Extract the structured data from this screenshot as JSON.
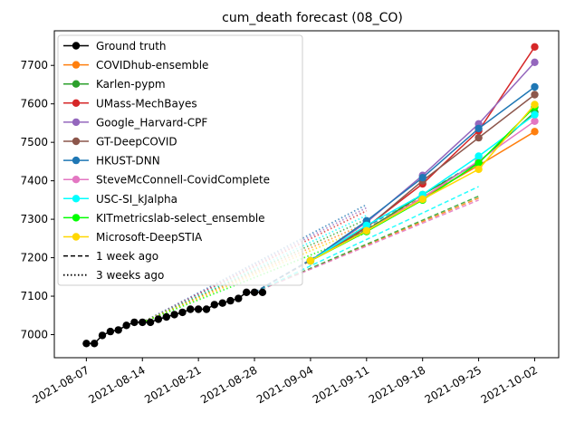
{
  "chart_data": {
    "type": "line",
    "title": "cum_death forecast (08_CO)",
    "xlabel": "",
    "ylabel": "",
    "x_ticks": [
      "2021-08-07",
      "2021-08-14",
      "2021-08-21",
      "2021-08-28",
      "2021-09-04",
      "2021-09-11",
      "2021-09-18",
      "2021-09-25",
      "2021-10-02"
    ],
    "y_ticks": [
      "7000",
      "7100",
      "7200",
      "7300",
      "7400",
      "7500",
      "7600",
      "7700"
    ],
    "xlim": [
      "2021-08-03",
      "2021-10-05"
    ],
    "ylim": [
      6940,
      7790
    ],
    "grid": false,
    "legend_position": "top-left",
    "ground_truth": {
      "name": "Ground truth",
      "color": "#000000",
      "points": [
        [
          "2021-08-07",
          6977
        ],
        [
          "2021-08-08",
          6977
        ],
        [
          "2021-08-09",
          6998
        ],
        [
          "2021-08-10",
          7008
        ],
        [
          "2021-08-11",
          7012
        ],
        [
          "2021-08-12",
          7024
        ],
        [
          "2021-08-13",
          7032
        ],
        [
          "2021-08-14",
          7032
        ],
        [
          "2021-08-15",
          7032
        ],
        [
          "2021-08-16",
          7040
        ],
        [
          "2021-08-17",
          7046
        ],
        [
          "2021-08-18",
          7052
        ],
        [
          "2021-08-19",
          7058
        ],
        [
          "2021-08-20",
          7066
        ],
        [
          "2021-08-21",
          7066
        ],
        [
          "2021-08-22",
          7066
        ],
        [
          "2021-08-23",
          7078
        ],
        [
          "2021-08-24",
          7082
        ],
        [
          "2021-08-25",
          7088
        ],
        [
          "2021-08-26",
          7094
        ],
        [
          "2021-08-27",
          7110
        ],
        [
          "2021-08-28",
          7110
        ],
        [
          "2021-08-29",
          7110
        ]
      ]
    },
    "series": [
      {
        "name": "COVIDhub-ensemble",
        "color": "#ff7f0e",
        "points": [
          [
            "2021-09-04",
            7192
          ],
          [
            "2021-09-11",
            7272
          ],
          [
            "2021-09-18",
            7356
          ],
          [
            "2021-09-25",
            7440
          ],
          [
            "2021-10-02",
            7528
          ]
        ]
      },
      {
        "name": "Karlen-pypm",
        "color": "#2ca02c",
        "points": [
          [
            "2021-09-04",
            7192
          ],
          [
            "2021-09-11",
            7272
          ],
          [
            "2021-09-18",
            7364
          ],
          [
            "2021-09-25",
            7448
          ],
          [
            "2021-10-02",
            7578
          ]
        ]
      },
      {
        "name": "UMass-MechBayes",
        "color": "#d62728",
        "points": [
          [
            "2021-09-04",
            7192
          ],
          [
            "2021-09-11",
            7280
          ],
          [
            "2021-09-18",
            7392
          ],
          [
            "2021-09-25",
            7530
          ],
          [
            "2021-10-02",
            7748
          ]
        ]
      },
      {
        "name": "Google_Harvard-CPF",
        "color": "#9467bd",
        "points": [
          [
            "2021-09-04",
            7192
          ],
          [
            "2021-09-11",
            7292
          ],
          [
            "2021-09-18",
            7414
          ],
          [
            "2021-09-25",
            7548
          ],
          [
            "2021-10-02",
            7708
          ]
        ]
      },
      {
        "name": "GT-DeepCOVID",
        "color": "#8c564b",
        "points": [
          [
            "2021-09-04",
            7192
          ],
          [
            "2021-09-11",
            7278
          ],
          [
            "2021-09-18",
            7400
          ],
          [
            "2021-09-25",
            7512
          ],
          [
            "2021-10-02",
            7624
          ]
        ]
      },
      {
        "name": "HKUST-DNN",
        "color": "#1f77b4",
        "points": [
          [
            "2021-09-04",
            7192
          ],
          [
            "2021-09-11",
            7296
          ],
          [
            "2021-09-18",
            7408
          ],
          [
            "2021-09-25",
            7536
          ],
          [
            "2021-10-02",
            7644
          ]
        ]
      },
      {
        "name": "SteveMcConnell-CovidComplete",
        "color": "#e377c2",
        "points": [
          [
            "2021-09-04",
            7192
          ],
          [
            "2021-09-11",
            7270
          ],
          [
            "2021-09-18",
            7356
          ],
          [
            "2021-09-25",
            7452
          ],
          [
            "2021-10-02",
            7555
          ]
        ]
      },
      {
        "name": "USC-SI_kJalpha",
        "color": "#00ffff",
        "points": [
          [
            "2021-09-04",
            7192
          ],
          [
            "2021-09-11",
            7284
          ],
          [
            "2021-09-18",
            7364
          ],
          [
            "2021-09-25",
            7464
          ],
          [
            "2021-10-02",
            7572
          ]
        ]
      },
      {
        "name": "KITmetricslab-select_ensemble",
        "color": "#00ff00",
        "points": [
          [
            "2021-09-04",
            7192
          ],
          [
            "2021-09-11",
            7268
          ],
          [
            "2021-09-18",
            7350
          ],
          [
            "2021-09-25",
            7446
          ],
          [
            "2021-10-02",
            7592
          ]
        ]
      },
      {
        "name": "Microsoft-DeepSTIA",
        "color": "#ffd700",
        "points": [
          [
            "2021-09-04",
            7192
          ],
          [
            "2021-09-11",
            7270
          ],
          [
            "2021-09-18",
            7352
          ],
          [
            "2021-09-25",
            7430
          ],
          [
            "2021-10-02",
            7598
          ]
        ]
      }
    ],
    "one_week_ago": [
      {
        "color": "#ff7f0e",
        "points": [
          [
            "2021-08-28",
            7110
          ],
          [
            "2021-09-25",
            7355
          ]
        ]
      },
      {
        "color": "#2ca02c",
        "points": [
          [
            "2021-08-28",
            7110
          ],
          [
            "2021-09-25",
            7360
          ]
        ]
      },
      {
        "color": "#e377c2",
        "points": [
          [
            "2021-08-28",
            7110
          ],
          [
            "2021-09-25",
            7350
          ]
        ]
      },
      {
        "color": "#00ffff",
        "points": [
          [
            "2021-08-28",
            7110
          ],
          [
            "2021-09-25",
            7385
          ]
        ]
      },
      {
        "color": "#8c564b",
        "points": [
          [
            "2021-08-28",
            7110
          ],
          [
            "2021-09-25",
            7440
          ]
        ]
      },
      {
        "color": "#1f77b4",
        "points": [
          [
            "2021-08-28",
            7110
          ],
          [
            "2021-09-25",
            7450
          ]
        ]
      }
    ],
    "three_weeks_ago": [
      {
        "color": "#1f77b4",
        "points": [
          [
            "2021-08-14",
            7032
          ],
          [
            "2021-09-11",
            7338
          ]
        ]
      },
      {
        "color": "#9467bd",
        "points": [
          [
            "2021-08-14",
            7032
          ],
          [
            "2021-09-11",
            7330
          ]
        ]
      },
      {
        "color": "#d62728",
        "points": [
          [
            "2021-08-14",
            7032
          ],
          [
            "2021-09-11",
            7322
          ]
        ]
      },
      {
        "color": "#00ffff",
        "points": [
          [
            "2021-08-14",
            7032
          ],
          [
            "2021-09-11",
            7310
          ]
        ]
      },
      {
        "color": "#2ca02c",
        "points": [
          [
            "2021-08-14",
            7032
          ],
          [
            "2021-09-11",
            7300
          ]
        ]
      },
      {
        "color": "#ff7f0e",
        "points": [
          [
            "2021-08-14",
            7032
          ],
          [
            "2021-09-11",
            7290
          ]
        ]
      },
      {
        "color": "#ffd700",
        "points": [
          [
            "2021-08-14",
            7032
          ],
          [
            "2021-09-11",
            7280
          ]
        ]
      },
      {
        "color": "#00ff00",
        "points": [
          [
            "2021-08-14",
            7032
          ],
          [
            "2021-09-11",
            7265
          ]
        ]
      }
    ],
    "legend": [
      {
        "label": "Ground truth",
        "color": "#000000",
        "style": "marker"
      },
      {
        "label": "COVIDhub-ensemble",
        "color": "#ff7f0e",
        "style": "marker"
      },
      {
        "label": "Karlen-pypm",
        "color": "#2ca02c",
        "style": "marker"
      },
      {
        "label": "UMass-MechBayes",
        "color": "#d62728",
        "style": "marker"
      },
      {
        "label": "Google_Harvard-CPF",
        "color": "#9467bd",
        "style": "marker"
      },
      {
        "label": "GT-DeepCOVID",
        "color": "#8c564b",
        "style": "marker"
      },
      {
        "label": "HKUST-DNN",
        "color": "#1f77b4",
        "style": "marker"
      },
      {
        "label": "SteveMcConnell-CovidComplete",
        "color": "#e377c2",
        "style": "marker"
      },
      {
        "label": "USC-SI_kJalpha",
        "color": "#00ffff",
        "style": "marker"
      },
      {
        "label": "KITmetricslab-select_ensemble",
        "color": "#00ff00",
        "style": "marker"
      },
      {
        "label": "Microsoft-DeepSTIA",
        "color": "#ffd700",
        "style": "marker"
      },
      {
        "label": "1 week ago",
        "color": "#000000",
        "style": "dashed"
      },
      {
        "label": "3 weeks ago",
        "color": "#000000",
        "style": "dotted"
      }
    ]
  }
}
